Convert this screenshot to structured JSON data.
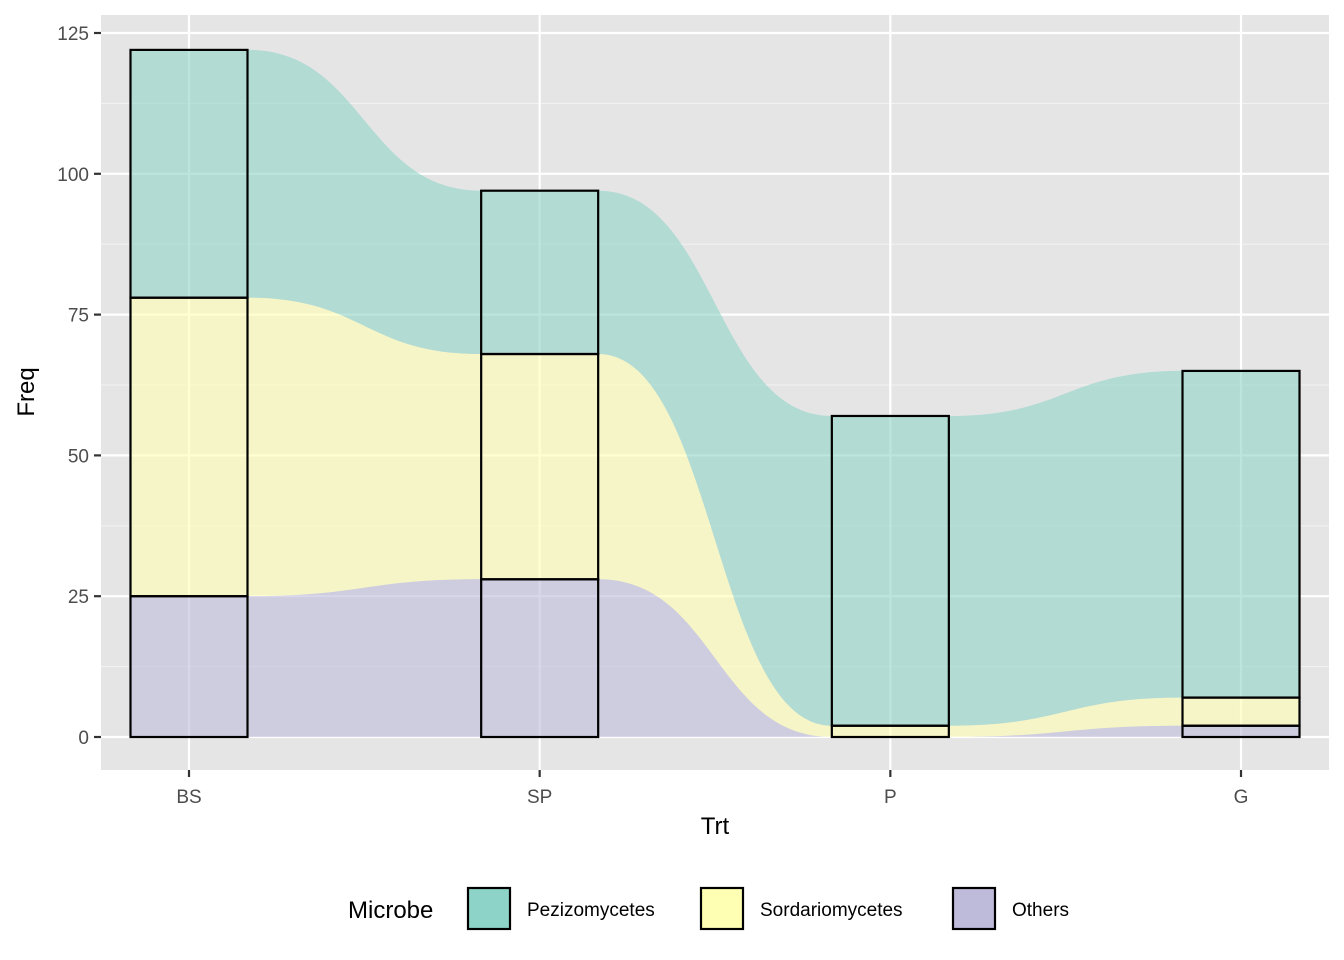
{
  "chart_data": {
    "type": "bar",
    "subtype": "stacked-bar-with-alluvial-flows",
    "categories": [
      "BS",
      "SP",
      "P",
      "G"
    ],
    "series": [
      {
        "name": "Pezizomycetes",
        "values": [
          44,
          29,
          55,
          58
        ],
        "color": "#8dd3c7"
      },
      {
        "name": "Sordariomycetes",
        "values": [
          53,
          40,
          2,
          5
        ],
        "color": "#ffffb3"
      },
      {
        "name": "Others",
        "values": [
          25,
          28,
          0,
          2
        ],
        "color": "#bebada"
      }
    ],
    "xlabel": "Trt",
    "ylabel": "Freq",
    "ylim": [
      -5,
      125
    ],
    "yticks": [
      0,
      25,
      50,
      75,
      100,
      125
    ],
    "grid": true,
    "panel_background": "#e5e5e5",
    "bar_outline_color": "#000000",
    "legend": {
      "title": "Microbe",
      "position": "bottom"
    }
  }
}
